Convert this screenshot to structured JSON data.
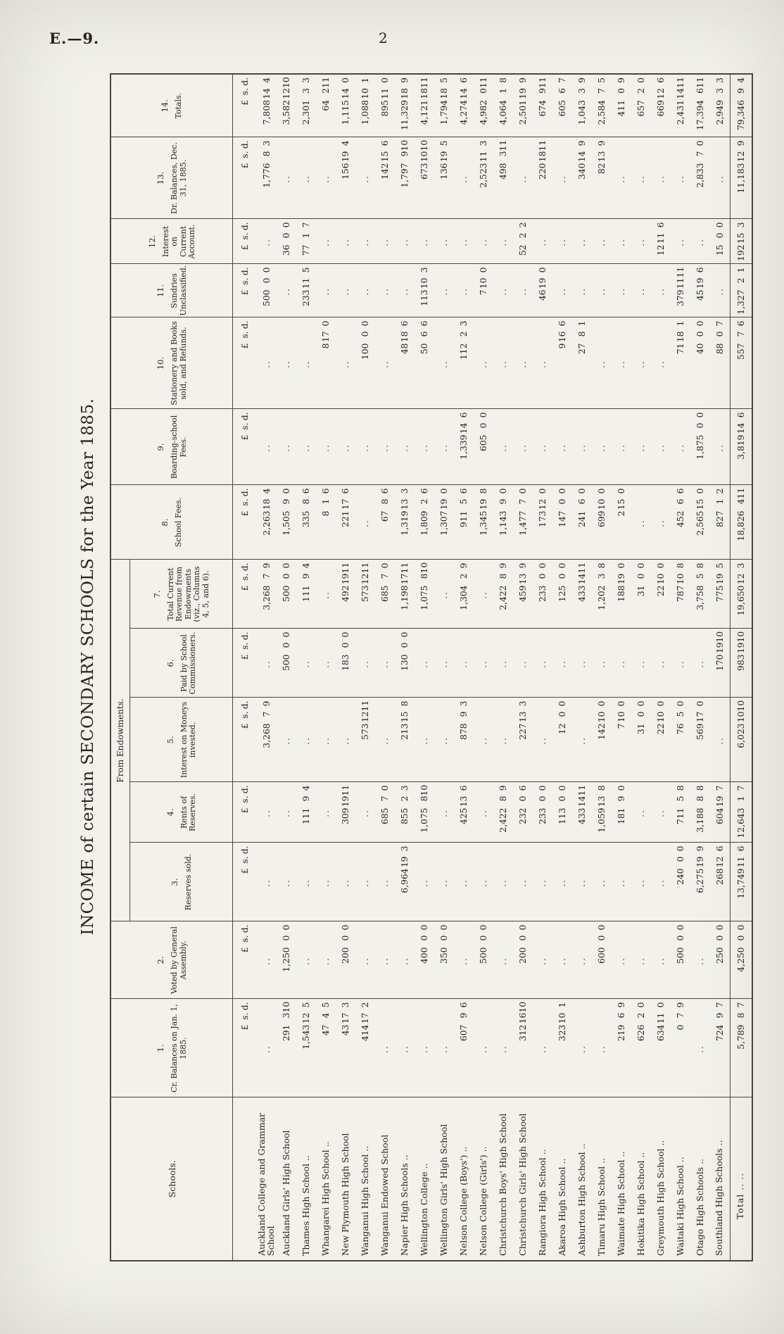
{
  "page": {
    "doc_ref": "E.—9.",
    "page_number": "2",
    "title": "INCOME of certain SECONDARY SCHOOLS for the Year 1885."
  },
  "table": {
    "schools_header": "Schools.",
    "group_header": "From Endowments.",
    "currency_header": {
      "pounds": "£",
      "shillings": "s.",
      "pence": "d."
    },
    "columns": [
      {
        "num": "1.",
        "label": "Cr. Balances on Jan. 1, 1885."
      },
      {
        "num": "2.",
        "label": "Voted by General Assembly."
      },
      {
        "num": "3.",
        "label": "Reserves sold."
      },
      {
        "num": "4.",
        "label": "Rents of Reserves."
      },
      {
        "num": "5.",
        "label": "Interest on Moneys invested."
      },
      {
        "num": "6.",
        "label": "Paid by School Commissioners."
      },
      {
        "num": "7.",
        "label": "Total Current Revenue from Endowments (viz., Columns 4, 5, and 6)."
      },
      {
        "num": "8.",
        "label": "School Fees."
      },
      {
        "num": "9.",
        "label": "Boarding-school Fees."
      },
      {
        "num": "10.",
        "label": "Stationery and Books sold, and Refunds."
      },
      {
        "num": "11.",
        "label": "Sundries Unclassified."
      },
      {
        "num": "12.",
        "label": "Interest on Current Account."
      },
      {
        "num": "13.",
        "label": "Dr. Balances, Dec. 31, 1885."
      },
      {
        "num": "14.",
        "label": "Totals."
      }
    ],
    "rows": [
      {
        "name": "Auckland College and Grammar School",
        "cells": [
          "..",
          "..",
          "..",
          "..",
          "3,268 7 9",
          "..",
          "3,268 7 9",
          "2,263 18 4",
          "..",
          "..",
          "500 0 0",
          "..",
          "1,776 8 3",
          "7,808 14 4"
        ]
      },
      {
        "name": "Auckland Girls' High School",
        "cells": [
          "291 3 10",
          "1,250 0 0",
          "..",
          "..",
          "..",
          "500 0 0",
          "500 0 0",
          "1,505 9 0",
          "..",
          "..",
          "..",
          "36 0 0",
          "..",
          "3,582 12 10"
        ]
      },
      {
        "name": "Thames High School ..",
        "cells": [
          "1,543 12 5",
          "..",
          "..",
          "111 9 4",
          "..",
          "..",
          "111 9 4",
          "335 8 6",
          "..",
          "..",
          "233 11 5",
          "77 1 7",
          "..",
          "2,301 3 3"
        ]
      },
      {
        "name": "Whangarei High School ..",
        "cells": [
          "47 4 5",
          "..",
          "..",
          "..",
          "..",
          "..",
          "..",
          "8 1 6",
          "..",
          "8 17 0",
          "..",
          "..",
          "..",
          "64 2 11"
        ]
      },
      {
        "name": "New Plymouth High School",
        "cells": [
          "43 17 3",
          "200 0 0",
          "..",
          "309 19 11",
          "..",
          "183 0 0",
          "492 19 11",
          "221 17 6",
          "..",
          "..",
          "..",
          "..",
          "156 19 4",
          "1,115 14 0"
        ]
      },
      {
        "name": "Wanganui High School ..",
        "cells": [
          "414 17 2",
          "..",
          "..",
          "..",
          "573 12 11",
          "..",
          "573 12 11",
          "..",
          "..",
          "100 0 0",
          "..",
          "..",
          "..",
          "1,088 10 1"
        ]
      },
      {
        "name": "Wanganui Endowed School",
        "cells": [
          "..",
          "..",
          "..",
          "685 7 0",
          "..",
          "..",
          "685 7 0",
          "67 8 6",
          "..",
          "..",
          "..",
          "..",
          "142 15 6",
          "895 11 0"
        ]
      },
      {
        "name": "Napier High Schools ..",
        "cells": [
          "..",
          "..",
          "6,964 19 3",
          "855 2 3",
          "213 15 8",
          "130 0 0",
          "1,198 17 11",
          "1,319 13 3",
          "..",
          "48 18 6",
          "..",
          "..",
          "1,797 9 10",
          "11,329 18 9"
        ]
      },
      {
        "name": "Wellington College ..",
        "cells": [
          "..",
          "400 0 0",
          "..",
          "1,075 8 10",
          "..",
          "..",
          "1,075 8 10",
          "1,809 2 6",
          "..",
          "50 6 6",
          "113 10 3",
          "..",
          "673 10 10",
          "4,121 18 11"
        ]
      },
      {
        "name": "Wellington Girls' High School",
        "cells": [
          "..",
          "350 0 0",
          "..",
          "..",
          "..",
          "..",
          "..",
          "1,307 19 0",
          "..",
          "..",
          "..",
          "..",
          "136 19 5",
          "1,794 18 5"
        ]
      },
      {
        "name": "Nelson College (Boys') ..",
        "cells": [
          "607 9 6",
          "..",
          "..",
          "425 13 6",
          "878 9 3",
          "..",
          "1,304 2 9",
          "911 5 6",
          "1,339 14 6",
          "112 2 3",
          "..",
          "..",
          "..",
          "4,274 14 6"
        ]
      },
      {
        "name": "Nelson College (Girls') ..",
        "cells": [
          "..",
          "500 0 0",
          "..",
          "..",
          "..",
          "..",
          "..",
          "1,345 19 8",
          "605 0 0",
          "..",
          "7 10 0",
          "..",
          "2,523 11 3",
          "4,982 0 11"
        ]
      },
      {
        "name": "Christchurch Boys' High School",
        "cells": [
          "..",
          "..",
          "..",
          "2,422 8 9",
          "..",
          "..",
          "2,422 8 9",
          "1,143 9 0",
          "..",
          "..",
          "..",
          "..",
          "498 3 11",
          "4,064 1 8"
        ]
      },
      {
        "name": "Christchurch Girls' High School",
        "cells": [
          "312 16 10",
          "200 0 0",
          "..",
          "232 0 6",
          "227 13 3",
          "..",
          "459 13 9",
          "1,477 7 0",
          "..",
          "..",
          "..",
          "52 2 2",
          "..",
          "2,501 19 9"
        ]
      },
      {
        "name": "Rangiora High School ..",
        "cells": [
          "..",
          "..",
          "..",
          "233 0 0",
          "..",
          "..",
          "233 0 0",
          "173 12 0",
          "..",
          "..",
          "46 19 0",
          "..",
          "220 18 11",
          "674 9 11"
        ]
      },
      {
        "name": "Akaroa High School ..",
        "cells": [
          "323 10 1",
          "..",
          "..",
          "113 0 0",
          "12 0 0",
          "..",
          "125 0 0",
          "147 0 0",
          "..",
          "9 16 6",
          "..",
          "..",
          "..",
          "605 6 7"
        ]
      },
      {
        "name": "Ashburton High School ..",
        "cells": [
          "..",
          "..",
          "..",
          "433 14 11",
          "..",
          "..",
          "433 14 11",
          "241 6 0",
          "..",
          "27 8 1",
          "..",
          "..",
          "340 14 9",
          "1,043 3 9"
        ]
      },
      {
        "name": "Timaru High School ..",
        "cells": [
          "..",
          "600 0 0",
          "..",
          "1,059 13 8",
          "142 10 0",
          "..",
          "1,202 3 8",
          "699 10 0",
          "..",
          "..",
          "..",
          "..",
          "82 13 9",
          "2,584 7 5"
        ]
      },
      {
        "name": "Waimate High School ..",
        "cells": [
          "219 6 9",
          "..",
          "..",
          "181 9 0",
          "7 10 0",
          "..",
          "188 19 0",
          "2 15 0",
          "..",
          "..",
          "..",
          "..",
          "..",
          "411 0 9"
        ]
      },
      {
        "name": "Hokitika High School ..",
        "cells": [
          "626 2 0",
          "..",
          "..",
          "..",
          "31 0 0",
          "..",
          "31 0 0",
          "..",
          "..",
          "..",
          "..",
          "..",
          "..",
          "657 2 0"
        ]
      },
      {
        "name": "Greymouth High School ..",
        "cells": [
          "634 11 0",
          "..",
          "..",
          "..",
          "22 10 0",
          "..",
          "22 10 0",
          "..",
          "..",
          "..",
          "..",
          "12 11 6",
          "..",
          "669 12 6"
        ]
      },
      {
        "name": "Waitaki High School ..",
        "cells": [
          "0 7 9",
          "500 0 0",
          "240 0 0",
          "711 5 8",
          "76 5 0",
          "..",
          "787 10 8",
          "452 6 6",
          "..",
          "71 18 1",
          "379 11 11",
          "..",
          "..",
          "2,431 14 11"
        ]
      },
      {
        "name": "Otago High Schools ..",
        "cells": [
          "..",
          "..",
          "6,275 19 9",
          "3,188 8 8",
          "569 17 0",
          "..",
          "3,758 5 8",
          "2,565 15 0",
          "1,875 0 0",
          "40 0 0",
          "45 19 6",
          "..",
          "2,833 7 0",
          "17,394 6 11"
        ]
      },
      {
        "name": "Southland High Schools ..",
        "cells": [
          "724 9 7",
          "250 0 0",
          "268 12 6",
          "604 19 7",
          "..",
          "170 19 10",
          "775 19 5",
          "827 1 2",
          "..",
          "88 0 7",
          "..",
          "15 0 0",
          "..",
          "2,949 3 3"
        ]
      }
    ],
    "total_row": {
      "name": "Total  ..  ..",
      "cells": [
        "5,789 8 7",
        "4,250 0 0",
        "13,749 11 6",
        "12,643 1 7",
        "6,023 10 10",
        "983 19 10",
        "19,650 12 3",
        "18,826 4 11",
        "3,819 14 6",
        "557 7 6",
        "1,327 2 1",
        "192 15 3",
        "11,183 12 9",
        "79,346 9 4"
      ]
    }
  }
}
